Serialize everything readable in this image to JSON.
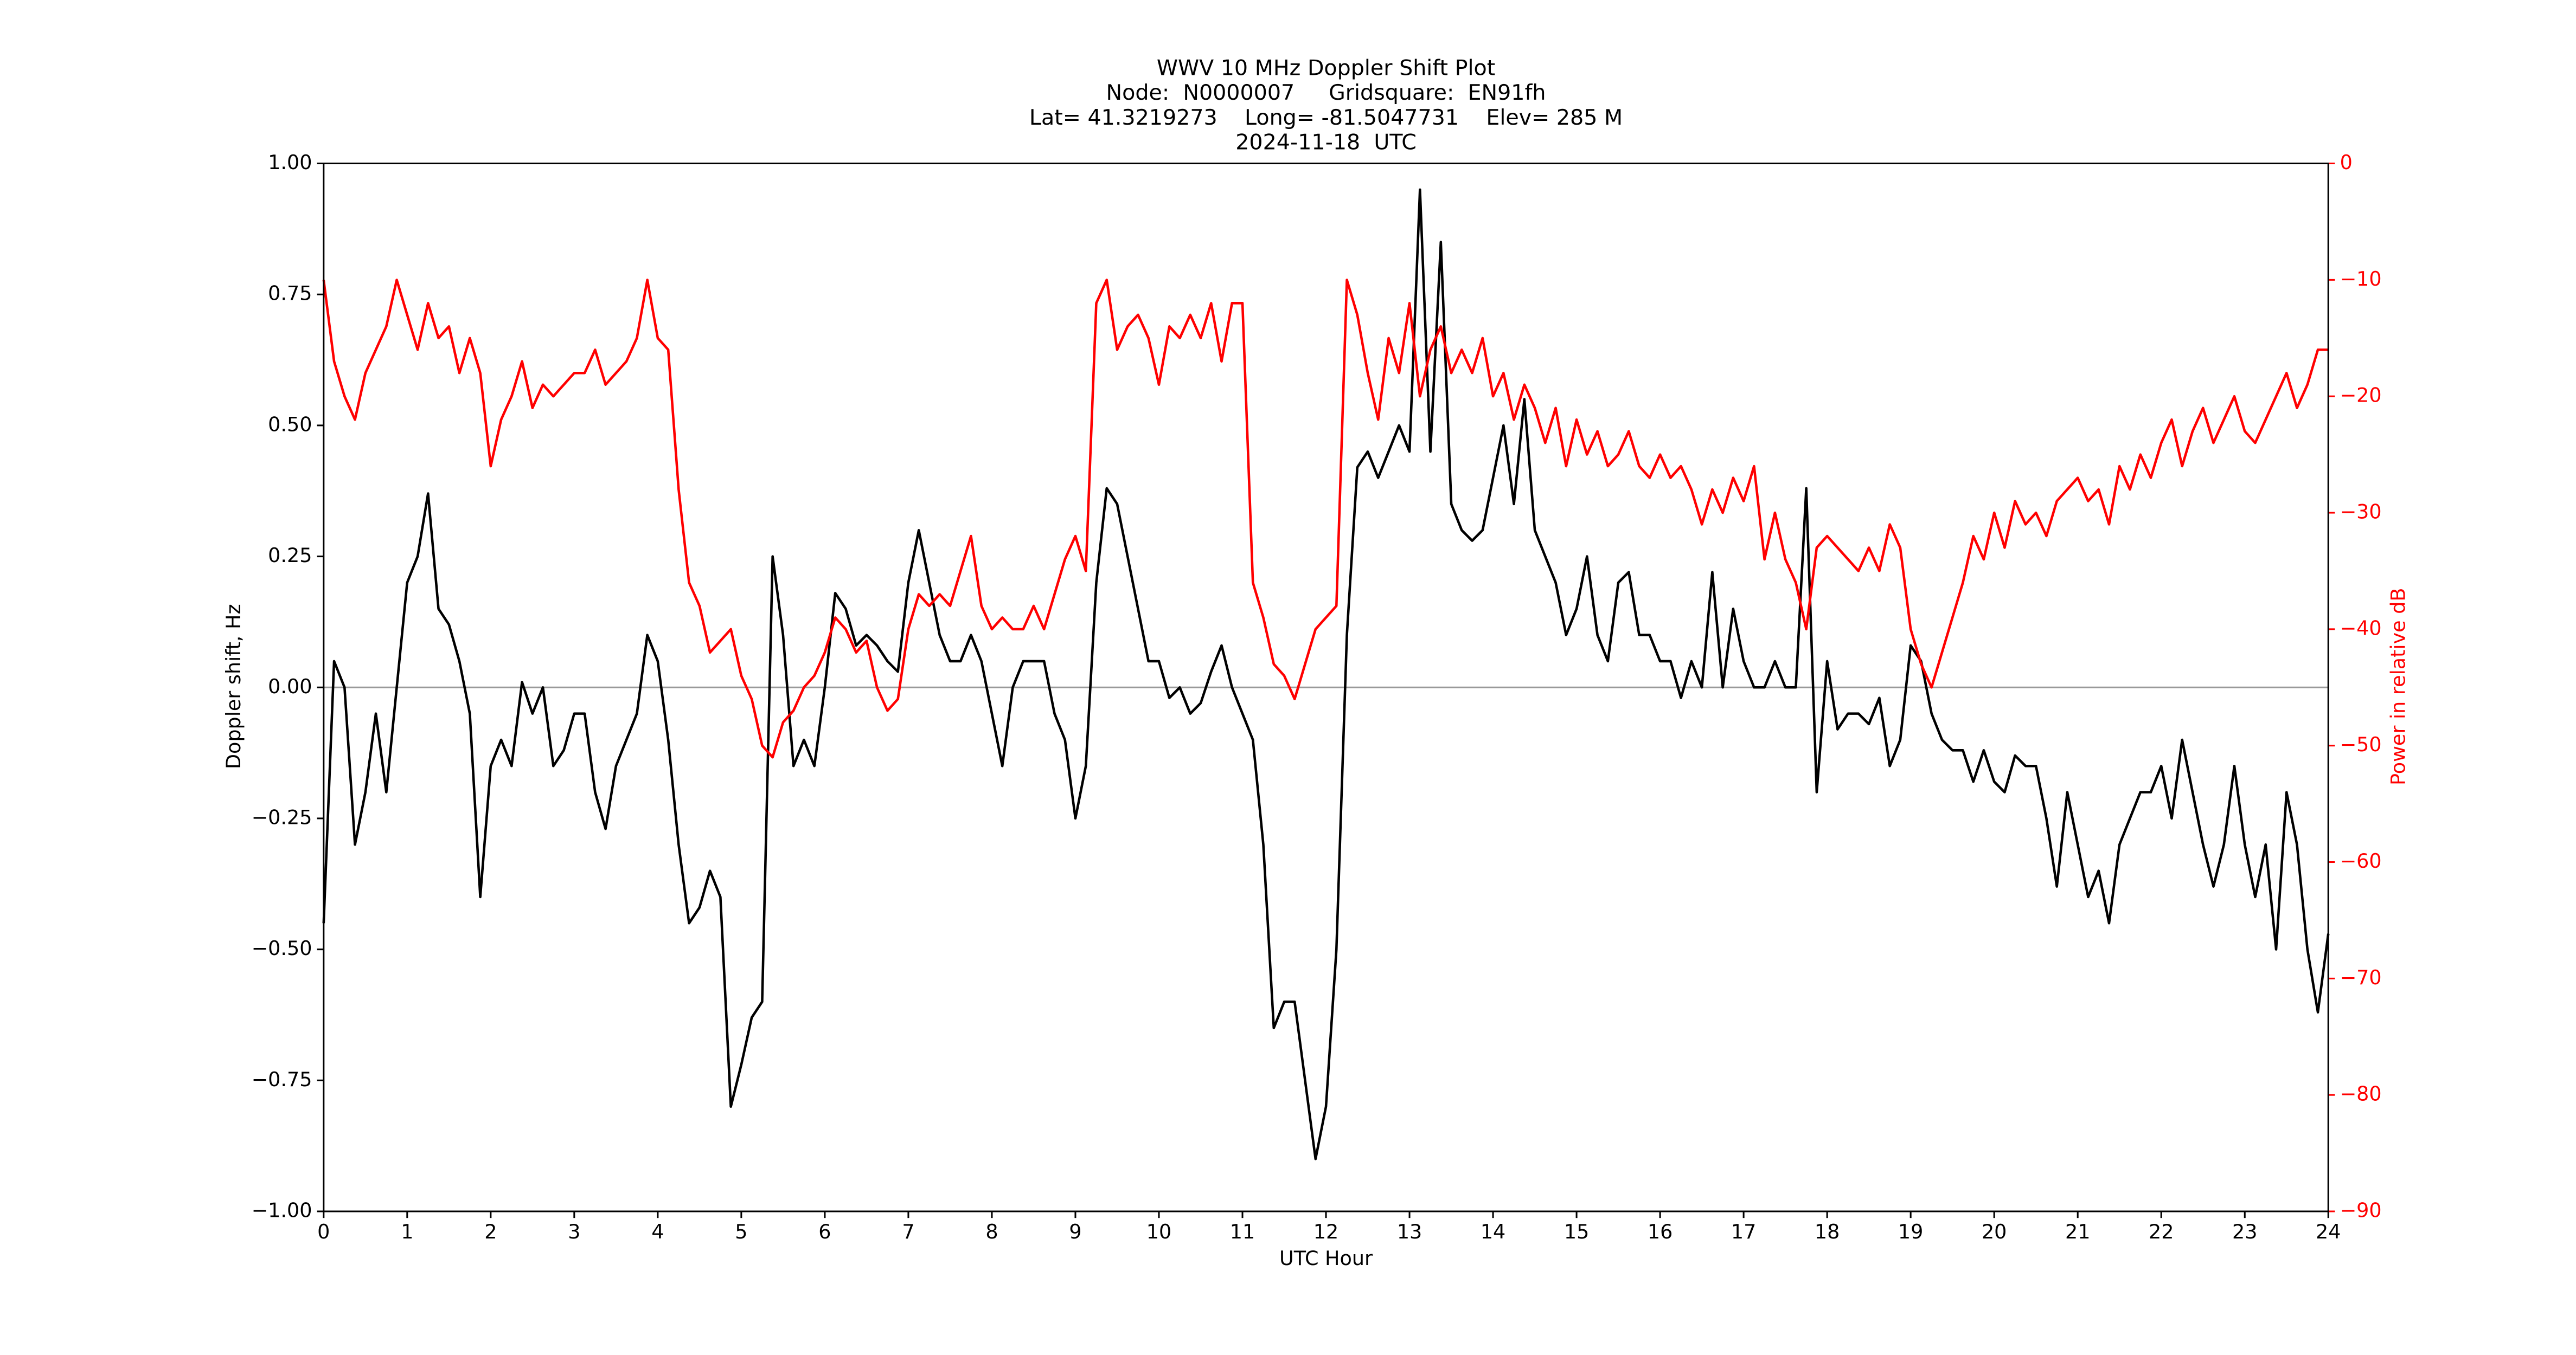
{
  "chart_data": {
    "type": "line",
    "title": "WWV 10 MHz Doppler Shift Plot",
    "subtitle": [
      "Node:  N0000007     Gridsquare:  EN91fh",
      "Lat= 41.3219273    Long= -81.5047731    Elev= 285 M",
      "2024-11-18  UTC"
    ],
    "x_label": "UTC Hour",
    "y_label": "Doppler shift, Hz",
    "y2_label": "Power in relative dB",
    "y2_color": "#ff0000",
    "xlim": [
      0,
      24
    ],
    "xticks": [
      0,
      1,
      2,
      3,
      4,
      5,
      6,
      7,
      8,
      9,
      10,
      11,
      12,
      13,
      14,
      15,
      16,
      17,
      18,
      19,
      20,
      21,
      22,
      23,
      24
    ],
    "ylim": [
      -1,
      1
    ],
    "yticks": [
      {
        "value": -1,
        "label": "−1.00"
      },
      {
        "value": -0.75,
        "label": "−0.75"
      },
      {
        "value": -0.5,
        "label": "−0.50"
      },
      {
        "value": -0.25,
        "label": "−0.25"
      },
      {
        "value": 0,
        "label": "0.00"
      },
      {
        "value": 0.25,
        "label": "0.25"
      },
      {
        "value": 0.5,
        "label": "0.50"
      },
      {
        "value": 0.75,
        "label": "0.75"
      },
      {
        "value": 1,
        "label": "1.00"
      }
    ],
    "y2lim": [
      -90,
      0
    ],
    "y2ticks": [
      {
        "value": -90,
        "label": "−90"
      },
      {
        "value": -80,
        "label": "−80"
      },
      {
        "value": -70,
        "label": "−70"
      },
      {
        "value": -60,
        "label": "−60"
      },
      {
        "value": -50,
        "label": "−50"
      },
      {
        "value": -40,
        "label": "−40"
      },
      {
        "value": -30,
        "label": "−30"
      },
      {
        "value": -20,
        "label": "−20"
      },
      {
        "value": -10,
        "label": "−10"
      },
      0
    ],
    "hline": 0,
    "hline_color": "#999999",
    "x": [
      0,
      0.125,
      0.25,
      0.375,
      0.5,
      0.625,
      0.75,
      0.875,
      1,
      1.125,
      1.25,
      1.375,
      1.5,
      1.625,
      1.75,
      1.875,
      2,
      2.125,
      2.25,
      2.375,
      2.5,
      2.625,
      2.75,
      2.875,
      3,
      3.125,
      3.25,
      3.375,
      3.5,
      3.625,
      3.75,
      3.875,
      4,
      4.125,
      4.25,
      4.375,
      4.5,
      4.625,
      4.75,
      4.875,
      5,
      5.125,
      5.25,
      5.375,
      5.5,
      5.625,
      5.75,
      5.875,
      6,
      6.125,
      6.25,
      6.375,
      6.5,
      6.625,
      6.75,
      6.875,
      7,
      7.125,
      7.25,
      7.375,
      7.5,
      7.625,
      7.75,
      7.875,
      8,
      8.125,
      8.25,
      8.375,
      8.5,
      8.625,
      8.75,
      8.875,
      9,
      9.125,
      9.25,
      9.375,
      9.5,
      9.625,
      9.75,
      9.875,
      10,
      10.125,
      10.25,
      10.375,
      10.5,
      10.625,
      10.75,
      10.875,
      11,
      11.125,
      11.25,
      11.375,
      11.5,
      11.625,
      11.75,
      11.875,
      12,
      12.125,
      12.25,
      12.375,
      12.5,
      12.625,
      12.75,
      12.875,
      13,
      13.125,
      13.25,
      13.375,
      13.5,
      13.625,
      13.75,
      13.875,
      14,
      14.125,
      14.25,
      14.375,
      14.5,
      14.625,
      14.75,
      14.875,
      15,
      15.125,
      15.25,
      15.375,
      15.5,
      15.625,
      15.75,
      15.875,
      16,
      16.125,
      16.25,
      16.375,
      16.5,
      16.625,
      16.75,
      16.875,
      17,
      17.125,
      17.25,
      17.375,
      17.5,
      17.625,
      17.75,
      17.875,
      18,
      18.125,
      18.25,
      18.375,
      18.5,
      18.625,
      18.75,
      18.875,
      19,
      19.125,
      19.25,
      19.375,
      19.5,
      19.625,
      19.75,
      19.875,
      20,
      20.125,
      20.25,
      20.375,
      20.5,
      20.625,
      20.75,
      20.875,
      21,
      21.125,
      21.25,
      21.375,
      21.5,
      21.625,
      21.75,
      21.875,
      22,
      22.125,
      22.25,
      22.375,
      22.5,
      22.625,
      22.75,
      22.875,
      23,
      23.125,
      23.25,
      23.375,
      23.5,
      23.625,
      23.75,
      23.875,
      24
    ],
    "series": [
      {
        "color": "#000000",
        "values": [
          -0.45,
          0.05,
          0.0,
          -0.3,
          -0.2,
          -0.05,
          -0.2,
          0.0,
          0.2,
          0.25,
          0.37,
          0.15,
          0.12,
          0.05,
          -0.05,
          -0.4,
          -0.15,
          -0.1,
          -0.15,
          0.01,
          -0.05,
          0.0,
          -0.15,
          -0.12,
          -0.05,
          -0.05,
          -0.2,
          -0.27,
          -0.15,
          -0.1,
          -0.05,
          0.1,
          0.05,
          -0.1,
          -0.3,
          -0.45,
          -0.42,
          -0.35,
          -0.4,
          -0.8,
          -0.72,
          -0.63,
          -0.6,
          0.25,
          0.1,
          -0.15,
          -0.1,
          -0.15,
          0.0,
          0.18,
          0.15,
          0.08,
          0.1,
          0.08,
          0.05,
          0.03,
          0.2,
          0.3,
          0.2,
          0.1,
          0.05,
          0.05,
          0.1,
          0.05,
          -0.05,
          -0.15,
          0.0,
          0.05,
          0.05,
          0.05,
          -0.05,
          -0.1,
          -0.25,
          -0.15,
          0.2,
          0.38,
          0.35,
          0.25,
          0.15,
          0.05,
          0.05,
          -0.02,
          0.0,
          -0.05,
          -0.03,
          0.03,
          0.08,
          0.0,
          -0.05,
          -0.1,
          -0.3,
          -0.65,
          -0.6,
          -0.6,
          -0.75,
          -0.9,
          -0.8,
          -0.5,
          0.1,
          0.42,
          0.45,
          0.4,
          0.45,
          0.5,
          0.45,
          0.95,
          0.45,
          0.85,
          0.35,
          0.3,
          0.28,
          0.3,
          0.4,
          0.5,
          0.35,
          0.55,
          0.3,
          0.25,
          0.2,
          0.1,
          0.15,
          0.25,
          0.1,
          0.05,
          0.2,
          0.22,
          0.1,
          0.1,
          0.05,
          0.05,
          -0.02,
          0.05,
          0.0,
          0.22,
          0.0,
          0.15,
          0.05,
          0.0,
          0.0,
          0.05,
          0.0,
          0.0,
          0.38,
          -0.2,
          0.05,
          -0.08,
          -0.05,
          -0.05,
          -0.07,
          -0.02,
          -0.15,
          -0.1,
          0.08,
          0.05,
          -0.05,
          -0.1,
          -0.12,
          -0.12,
          -0.18,
          -0.12,
          -0.18,
          -0.2,
          -0.13,
          -0.15,
          -0.15,
          -0.25,
          -0.38,
          -0.2,
          -0.3,
          -0.4,
          -0.35,
          -0.45,
          -0.3,
          -0.25,
          -0.2,
          -0.2,
          -0.15,
          -0.25,
          -0.1,
          -0.2,
          -0.3,
          -0.38,
          -0.3,
          -0.15,
          -0.3,
          -0.4,
          -0.3,
          -0.5,
          -0.2,
          -0.3,
          -0.5,
          -0.62,
          -0.47
        ]
      },
      {
        "color": "#ff0000",
        "axis": "y2",
        "values": [
          -10,
          -17,
          -20,
          -22,
          -18,
          -16,
          -14,
          -10,
          -13,
          -16,
          -12,
          -15,
          -14,
          -18,
          -15,
          -18,
          -26,
          -22,
          -20,
          -17,
          -21,
          -19,
          -20,
          -19,
          -18,
          -18,
          -16,
          -19,
          -18,
          -17,
          -15,
          -10,
          -15,
          -16,
          -28,
          -36,
          -38,
          -42,
          -41,
          -40,
          -44,
          -46,
          -50,
          -51,
          -48,
          -47,
          -45,
          -44,
          -42,
          -39,
          -40,
          -42,
          -41,
          -45,
          -47,
          -46,
          -40,
          -37,
          -38,
          -37,
          -38,
          -35,
          -32,
          -38,
          -40,
          -39,
          -40,
          -40,
          -38,
          -40,
          -37,
          -34,
          -32,
          -35,
          -12,
          -10,
          -16,
          -14,
          -13,
          -15,
          -19,
          -14,
          -15,
          -13,
          -15,
          -12,
          -17,
          -12,
          -12,
          -36,
          -39,
          -43,
          -44,
          -46,
          -43,
          -40,
          -39,
          -38,
          -10,
          -13,
          -18,
          -22,
          -15,
          -18,
          -12,
          -20,
          -16,
          -14,
          -18,
          -16,
          -18,
          -15,
          -20,
          -18,
          -22,
          -19,
          -21,
          -24,
          -21,
          -26,
          -22,
          -25,
          -23,
          -26,
          -25,
          -23,
          -26,
          -27,
          -25,
          -27,
          -26,
          -28,
          -31,
          -28,
          -30,
          -27,
          -29,
          -26,
          -34,
          -30,
          -34,
          -36,
          -40,
          -33,
          -32,
          -33,
          -34,
          -35,
          -33,
          -35,
          -31,
          -33,
          -40,
          -43,
          -45,
          -42,
          -39,
          -36,
          -32,
          -34,
          -30,
          -33,
          -29,
          -31,
          -30,
          -32,
          -29,
          -28,
          -27,
          -29,
          -28,
          -31,
          -26,
          -28,
          -25,
          -27,
          -24,
          -22,
          -26,
          -23,
          -21,
          -24,
          -22,
          -20,
          -23,
          -24,
          -22,
          -20,
          -18,
          -21,
          -19,
          -16,
          -16
        ]
      }
    ]
  }
}
